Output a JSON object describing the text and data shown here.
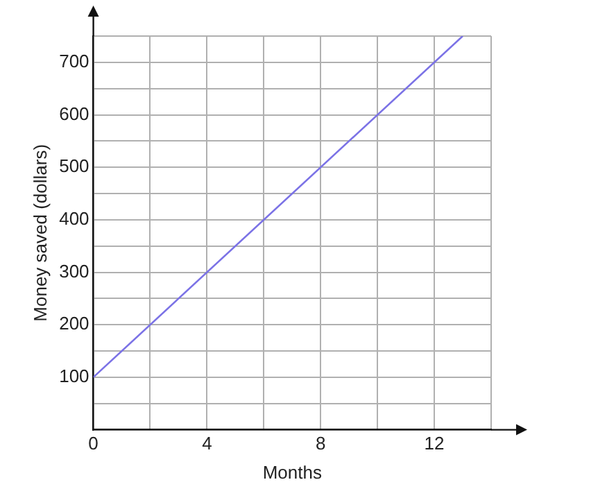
{
  "chart_data": {
    "type": "line",
    "xlabel": "Months",
    "ylabel": "Money saved (dollars)",
    "x": [
      0,
      13
    ],
    "series": [
      {
        "color": "#7b72e6",
        "values": [
          100,
          750
        ]
      }
    ],
    "xlim": [
      0,
      14
    ],
    "xticks": [
      0,
      {
        "value": 2,
        "label": null
      },
      4,
      {
        "value": 6,
        "label": null
      },
      8,
      {
        "value": 10,
        "label": null
      },
      12,
      {
        "value": 14,
        "label": null
      }
    ],
    "ylim": [
      0,
      750
    ],
    "yticks": [
      {
        "value": 0,
        "label": null
      },
      {
        "value": 50,
        "label": null
      },
      100,
      {
        "value": 150,
        "label": null
      },
      200,
      {
        "value": 250,
        "label": null
      },
      300,
      {
        "value": 350,
        "label": null
      },
      400,
      {
        "value": 450,
        "label": null
      },
      500,
      {
        "value": 550,
        "label": null
      },
      600,
      {
        "value": 650,
        "label": null
      },
      700,
      {
        "value": 750,
        "label": null
      }
    ],
    "grid": true,
    "legend": false,
    "marker": "none",
    "line_style": "solid"
  }
}
